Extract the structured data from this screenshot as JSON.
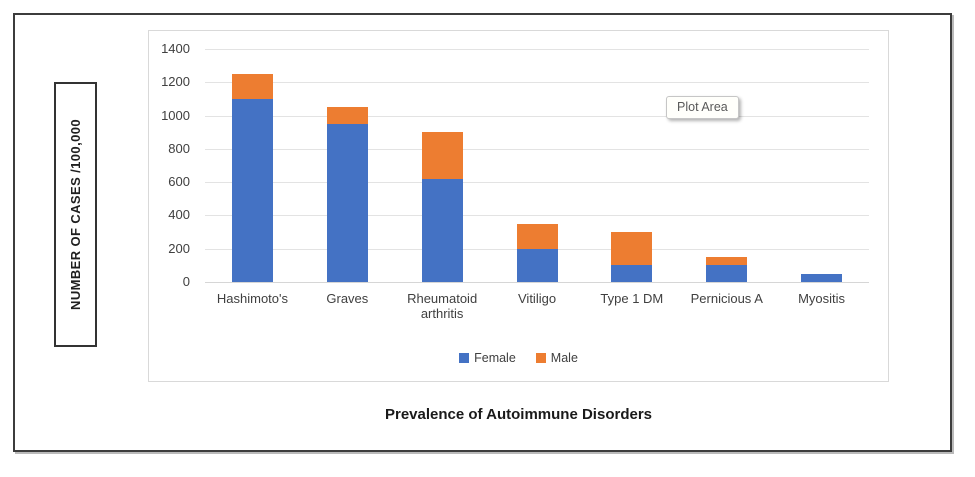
{
  "tooltip": {
    "label": "Plot Area"
  },
  "colors": {
    "female": "#4472C4",
    "male": "#ED7D31",
    "gridline": "#E3E3E3",
    "axis_line": "#D6D6D6",
    "tick_text": "#404040",
    "tooltip_text": "#595959"
  },
  "chart_data": {
    "type": "bar",
    "stacked": true,
    "title": "Prevalence of Autoimmune Disorders",
    "ylabel": "NUMBER OF CASES /100,000",
    "xlabel": "",
    "ylim": [
      0,
      1400
    ],
    "ytick_step": 200,
    "yticks": [
      0,
      200,
      400,
      600,
      800,
      1000,
      1200,
      1400
    ],
    "grid": true,
    "legend_position": "bottom",
    "categories": [
      "Hashimoto's",
      "Graves",
      "Rheumatoid arthritis",
      "Vitiligo",
      "Type 1 DM",
      "Pernicious A",
      "Myositis"
    ],
    "series": [
      {
        "name": "Female",
        "color": "#4472C4",
        "values": [
          1100,
          950,
          620,
          200,
          100,
          100,
          50
        ]
      },
      {
        "name": "Male",
        "color": "#ED7D31",
        "values": [
          150,
          100,
          280,
          150,
          200,
          50,
          0
        ]
      }
    ],
    "totals": [
      1250,
      1050,
      900,
      350,
      300,
      150,
      50
    ]
  }
}
